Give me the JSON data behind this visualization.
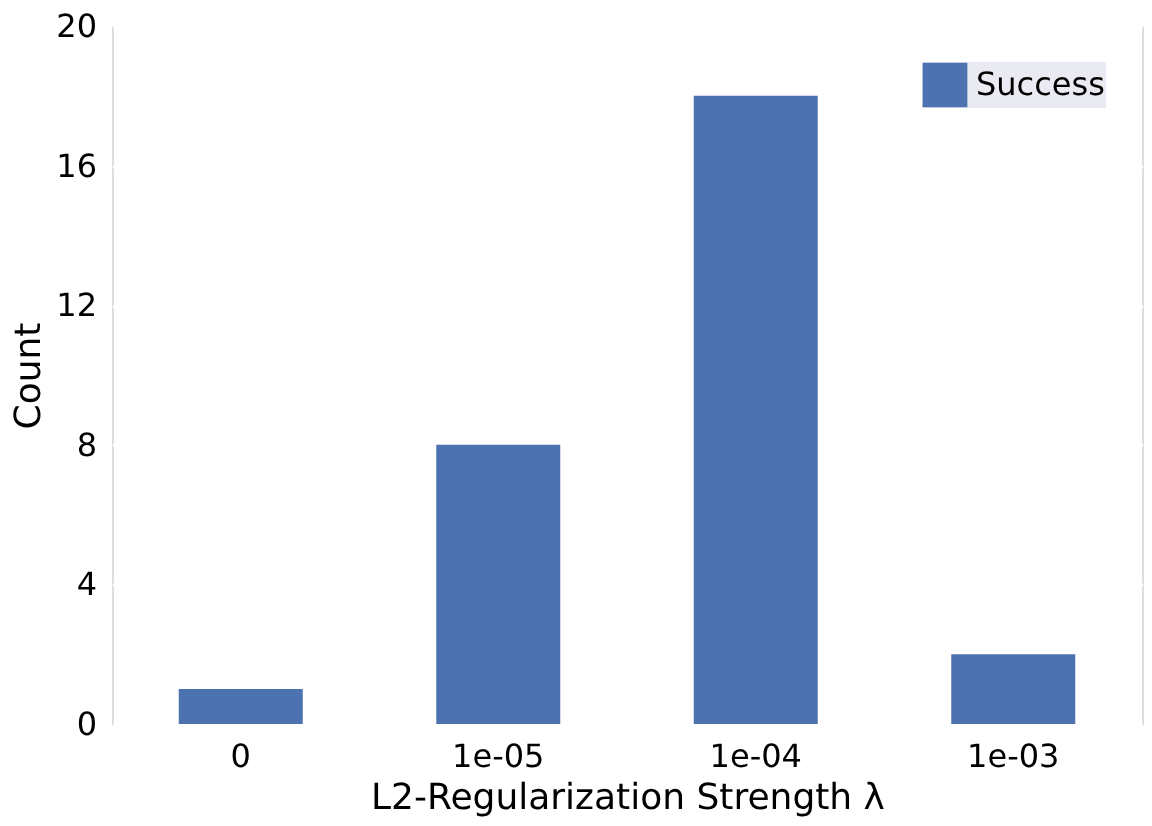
{
  "chart_data": {
    "type": "bar",
    "xlabel": "L2-Regularization Strength λ",
    "ylabel": "Count",
    "categories": [
      "0",
      "1e-05",
      "1e-04",
      "1e-03"
    ],
    "series": [
      {
        "name": "Success",
        "color": "#4c72b0",
        "values": [
          1,
          8,
          18,
          2
        ]
      }
    ],
    "ylim": [
      0,
      20
    ],
    "yticks": [
      0,
      4,
      8,
      12,
      16,
      20
    ],
    "grid": true,
    "legend": "top right"
  }
}
